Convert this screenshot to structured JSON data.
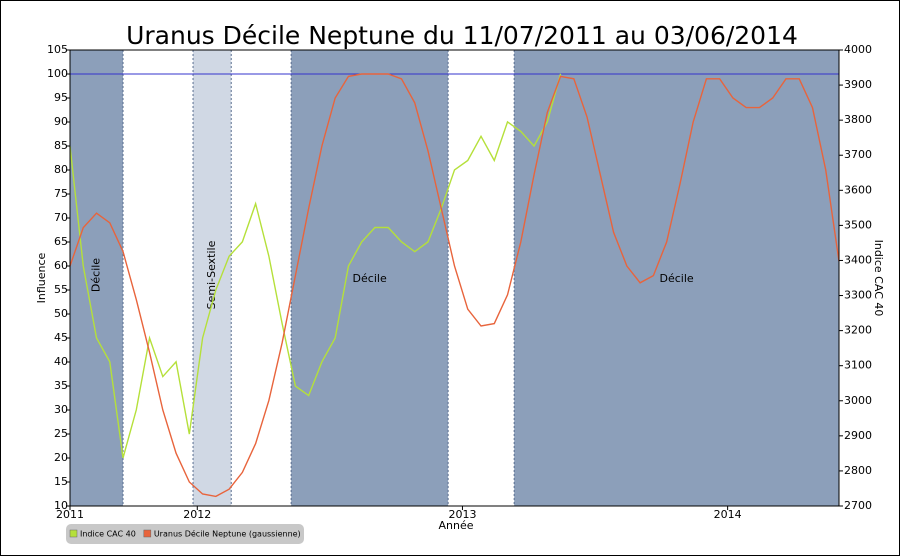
{
  "chart_data": {
    "type": "line",
    "title": "Uranus Décile Neptune du 11/07/2011 au 03/06/2014",
    "x_label": "Année",
    "y_label": "Influence",
    "y2_label": "Indice CAC 40",
    "xlim": [
      2011.52,
      2014.42
    ],
    "xticks": [
      {
        "value": 2011.52,
        "label": "2011"
      },
      2012,
      2013,
      2014
    ],
    "ylim": [
      10,
      105
    ],
    "yticks": [
      10,
      15,
      20,
      25,
      30,
      35,
      40,
      45,
      50,
      55,
      60,
      65,
      70,
      75,
      80,
      85,
      90,
      95,
      100,
      105
    ],
    "y2lim": [
      2700,
      4000
    ],
    "y2ticks": [
      2700,
      2800,
      2900,
      3000,
      3100,
      3200,
      3300,
      3400,
      3500,
      3600,
      3700,
      3800,
      3900,
      4000
    ],
    "hline": {
      "value": 100,
      "color": "#3333cc"
    },
    "bands": [
      {
        "start": 2011.52,
        "end": 2011.72,
        "label": "Décile",
        "color": "#8c9fba"
      },
      {
        "start": 2011.984,
        "end": 2012.128,
        "label": "Semi-Sextile",
        "color": "#d0d8e4"
      },
      {
        "start": 2012.354,
        "end": 2012.946,
        "label": "Décile",
        "color": "#8c9fba"
      },
      {
        "start": 2013.195,
        "end": 2014.42,
        "label": "Décile",
        "color": "#8c9fba"
      }
    ],
    "x": [
      2011.52,
      2011.57,
      2011.62,
      2011.67,
      2011.72,
      2011.77,
      2011.82,
      2011.87,
      2011.92,
      2011.97,
      2012.02,
      2012.07,
      2012.12,
      2012.17,
      2012.22,
      2012.27,
      2012.32,
      2012.37,
      2012.42,
      2012.47,
      2012.52,
      2012.57,
      2012.62,
      2012.67,
      2012.72,
      2012.77,
      2012.82,
      2012.87,
      2012.92,
      2012.97,
      2013.02,
      2013.07,
      2013.12,
      2013.17,
      2013.22,
      2013.27,
      2013.32,
      2013.37,
      2013.42,
      2013.47,
      2013.52,
      2013.57,
      2013.62,
      2013.67,
      2013.72,
      2013.77,
      2013.82,
      2013.87,
      2013.92,
      2013.97,
      2014.02,
      2014.07,
      2014.12,
      2014.17,
      2014.22,
      2014.27,
      2014.32,
      2014.37,
      2014.42
    ],
    "series": [
      {
        "name": "Indice CAC 40",
        "color": "#b5e03a",
        "axis": "y2",
        "values": [
          3726,
          3384,
          3179,
          3111,
          2837,
          2974,
          3179,
          3069,
          3111,
          2905,
          3179,
          3316,
          3412,
          3453,
          3562,
          3412,
          3220,
          3042,
          3015,
          3111,
          3179,
          3384,
          3453,
          3494,
          3494,
          3453,
          3425,
          3453,
          3548,
          3658,
          3685,
          3754,
          3685,
          3795,
          3768,
          3726,
          3795,
          3932,
          null,
          null,
          null,
          null,
          null,
          null,
          null,
          null,
          null,
          null,
          null,
          null,
          null,
          null,
          null,
          null,
          null,
          null,
          null,
          null,
          null
        ]
      },
      {
        "name": "Uranus Décile Neptune (gaussienne)",
        "color": "#e8643c",
        "values": [
          60,
          68,
          71,
          69,
          63,
          53,
          42,
          30,
          21,
          15,
          12.5,
          12,
          13.5,
          17,
          23,
          32,
          44,
          58,
          72,
          85,
          95,
          99.5,
          100,
          100,
          100,
          99,
          94,
          84,
          72,
          60,
          51,
          47.5,
          48,
          54,
          65,
          79,
          92,
          99.5,
          99,
          91,
          79,
          67,
          60,
          56.5,
          58,
          65,
          77,
          90,
          99,
          99,
          95,
          93,
          93,
          95,
          99,
          99,
          93,
          80,
          61
        ]
      }
    ]
  }
}
